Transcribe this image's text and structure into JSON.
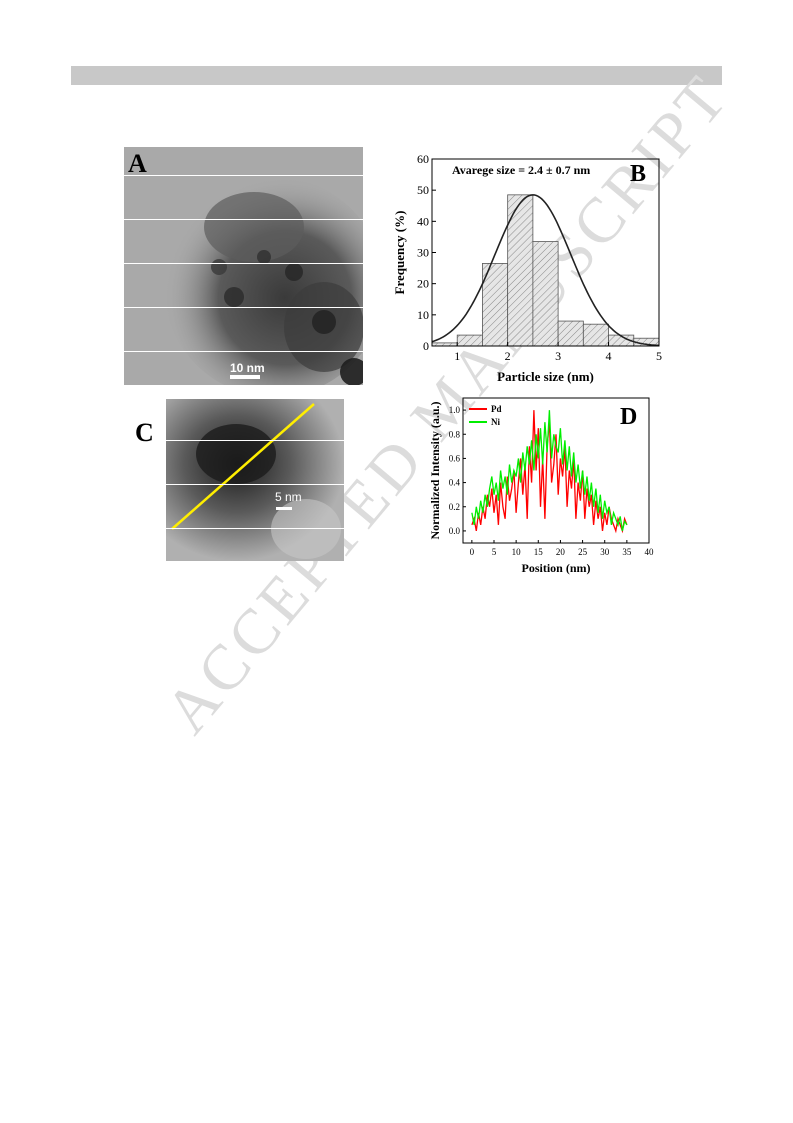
{
  "watermark": "ACCEPTED MANUSCRIPT",
  "panel_a": {
    "letter": "A",
    "scale_label": "10 nm"
  },
  "panel_c": {
    "letter": "C",
    "scale_label": "5 nm"
  },
  "chart_data": [
    {
      "type": "bar",
      "panel": "B",
      "letter": "B",
      "annotation": "Avarege size = 2.4 ± 0.7 nm",
      "xlabel": "Particle size (nm)",
      "ylabel": "Frequency (%)",
      "xlim": [
        0.5,
        5
      ],
      "ylim": [
        0,
        60
      ],
      "xticks": [
        "1",
        "2",
        "3",
        "4",
        "5"
      ],
      "yticks": [
        "0",
        "10",
        "20",
        "30",
        "40",
        "50",
        "60"
      ],
      "bins": [
        {
          "x0": 0.5,
          "x1": 1.0,
          "value": 1
        },
        {
          "x0": 1.0,
          "x1": 1.5,
          "value": 3.5
        },
        {
          "x0": 1.5,
          "x1": 2.0,
          "value": 26.5
        },
        {
          "x0": 2.0,
          "x1": 2.5,
          "value": 48.5
        },
        {
          "x0": 2.5,
          "x1": 3.0,
          "value": 33.5
        },
        {
          "x0": 3.0,
          "x1": 3.5,
          "value": 8
        },
        {
          "x0": 3.5,
          "x1": 4.0,
          "value": 7
        },
        {
          "x0": 4.0,
          "x1": 4.5,
          "value": 3.5
        },
        {
          "x0": 4.5,
          "x1": 5.0,
          "value": 2.5
        }
      ],
      "fit": {
        "type": "gaussian",
        "mean": 2.5,
        "sigma": 0.75,
        "peak": 48.5
      },
      "grid": false
    },
    {
      "type": "line",
      "panel": "D",
      "letter": "D",
      "xlabel": "Position (nm)",
      "ylabel": "Normalized Intensity (a.u.)",
      "xlim": [
        -2,
        40
      ],
      "ylim": [
        -0.1,
        1.1
      ],
      "xticks": [
        "0",
        "5",
        "10",
        "15",
        "20",
        "25",
        "30",
        "35",
        "40"
      ],
      "yticks": [
        "0.0",
        "0.2",
        "0.4",
        "0.6",
        "0.8",
        "1.0"
      ],
      "legend_position": "top-left",
      "grid": false,
      "series": [
        {
          "name": "Pd",
          "color": "#ff0000",
          "x": [
            0,
            0.5,
            1,
            1.5,
            2,
            2.5,
            3,
            3.5,
            4,
            4.5,
            5,
            5.5,
            6,
            6.5,
            7,
            7.5,
            8,
            8.5,
            9,
            9.5,
            10,
            10.5,
            11,
            11.5,
            12,
            12.5,
            13,
            13.5,
            14,
            14.5,
            15,
            15.5,
            16,
            16.5,
            17,
            17.5,
            18,
            18.5,
            19,
            19.5,
            20,
            20.5,
            21,
            21.5,
            22,
            22.5,
            23,
            23.5,
            24,
            24.5,
            25,
            25.5,
            26,
            26.5,
            27,
            27.5,
            28,
            28.5,
            29,
            29.5,
            30,
            30.5,
            31,
            31.5,
            32,
            32.5,
            33,
            33.5,
            34,
            34.5,
            35
          ],
          "y": [
            0.05,
            0.1,
            0.0,
            0.15,
            0.05,
            0.2,
            0.1,
            0.3,
            0.2,
            0.35,
            0.15,
            0.3,
            0.05,
            0.4,
            0.2,
            0.1,
            0.45,
            0.25,
            0.35,
            0.5,
            0.15,
            0.4,
            0.6,
            0.3,
            0.55,
            0.1,
            0.7,
            0.4,
            1.0,
            0.5,
            0.85,
            0.2,
            0.6,
            0.1,
            0.7,
            0.9,
            0.4,
            0.55,
            0.8,
            0.3,
            0.6,
            0.45,
            0.7,
            0.2,
            0.5,
            0.35,
            0.6,
            0.1,
            0.4,
            0.25,
            0.5,
            0.1,
            0.35,
            0.2,
            0.3,
            0.05,
            0.25,
            0.1,
            0.2,
            0.0,
            0.15,
            0.05,
            0.2,
            0.1,
            0.05,
            0.0,
            0.1,
            0.05,
            0.0,
            0.1,
            0.05
          ]
        },
        {
          "name": "Ni",
          "color": "#00ee00",
          "x": [
            0,
            0.5,
            1,
            1.5,
            2,
            2.5,
            3,
            3.5,
            4,
            4.5,
            5,
            5.5,
            6,
            6.5,
            7,
            7.5,
            8,
            8.5,
            9,
            9.5,
            10,
            10.5,
            11,
            11.5,
            12,
            12.5,
            13,
            13.5,
            14,
            14.5,
            15,
            15.5,
            16,
            16.5,
            17,
            17.5,
            18,
            18.5,
            19,
            19.5,
            20,
            20.5,
            21,
            21.5,
            22,
            22.5,
            23,
            23.5,
            24,
            24.5,
            25,
            25.5,
            26,
            26.5,
            27,
            27.5,
            28,
            28.5,
            29,
            29.5,
            30,
            30.5,
            31,
            31.5,
            32,
            32.5,
            33,
            33.5,
            34,
            34.5,
            35
          ],
          "y": [
            0.15,
            0.05,
            0.2,
            0.1,
            0.25,
            0.15,
            0.3,
            0.2,
            0.35,
            0.45,
            0.3,
            0.4,
            0.25,
            0.5,
            0.35,
            0.45,
            0.3,
            0.55,
            0.4,
            0.5,
            0.45,
            0.6,
            0.4,
            0.65,
            0.5,
            0.7,
            0.55,
            0.75,
            0.5,
            0.8,
            0.6,
            0.85,
            0.55,
            0.9,
            0.65,
            1.0,
            0.6,
            0.8,
            0.7,
            0.65,
            0.85,
            0.55,
            0.75,
            0.5,
            0.7,
            0.45,
            0.65,
            0.4,
            0.55,
            0.35,
            0.5,
            0.3,
            0.45,
            0.25,
            0.4,
            0.2,
            0.35,
            0.15,
            0.3,
            0.1,
            0.25,
            0.15,
            0.2,
            0.05,
            0.15,
            0.1,
            0.05,
            0.12,
            0.0,
            0.08,
            0.05
          ]
        }
      ]
    }
  ]
}
